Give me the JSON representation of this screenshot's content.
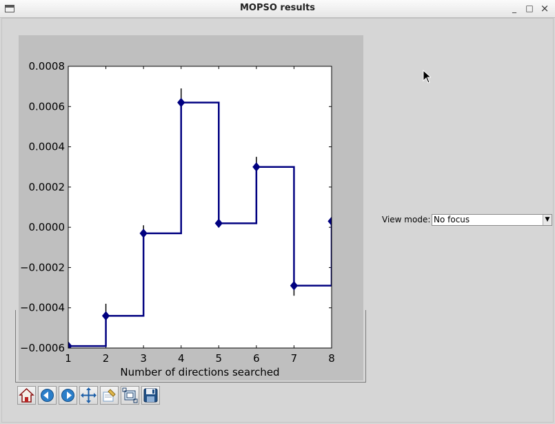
{
  "window": {
    "title": "MOPSO results",
    "minimize_glyph": "_",
    "maximize_glyph": "□",
    "close_glyph": "×"
  },
  "view_mode": {
    "label": "View mode:",
    "selected": "No focus"
  },
  "toolbar": {
    "buttons": [
      "home-icon",
      "back-arrow-icon",
      "forward-arrow-icon",
      "pan-icon",
      "edit-icon",
      "zoom-rect-icon",
      "save-icon"
    ]
  },
  "chart_data": {
    "type": "line",
    "drawstyle": "steps-post",
    "marker": "diamond",
    "color": "#000080",
    "xlabel": "Number of directions searched",
    "ylabel": "",
    "title": "",
    "xlim": [
      1,
      8
    ],
    "ylim": [
      -0.0006,
      0.0008
    ],
    "xticks": [
      "1",
      "2",
      "3",
      "4",
      "5",
      "6",
      "7",
      "8"
    ],
    "yticks": [
      "0.0008",
      "0.0006",
      "0.0004",
      "0.0002",
      "0.0000",
      "−0.0002",
      "−0.0004",
      "−0.0006"
    ],
    "ytick_values": [
      0.0008,
      0.0006,
      0.0004,
      0.0002,
      0.0,
      -0.0002,
      -0.0004,
      -0.0006
    ],
    "x": [
      1,
      2,
      3,
      4,
      5,
      6,
      7,
      8
    ],
    "y": [
      -0.00059,
      -0.00044,
      -3e-05,
      0.00062,
      2e-05,
      0.0003,
      -0.00029,
      3e-05
    ],
    "y_err_upper": [
      -0.00057,
      -0.00038,
      1e-05,
      0.00069,
      2e-05,
      0.00035,
      -0.00029,
      3e-05
    ],
    "y_err_lower": [
      -0.00059,
      -0.00044,
      -3e-05,
      0.00062,
      2e-05,
      0.0003,
      -0.00034,
      3e-05
    ],
    "grid": false,
    "background": "#bfbfbf"
  }
}
